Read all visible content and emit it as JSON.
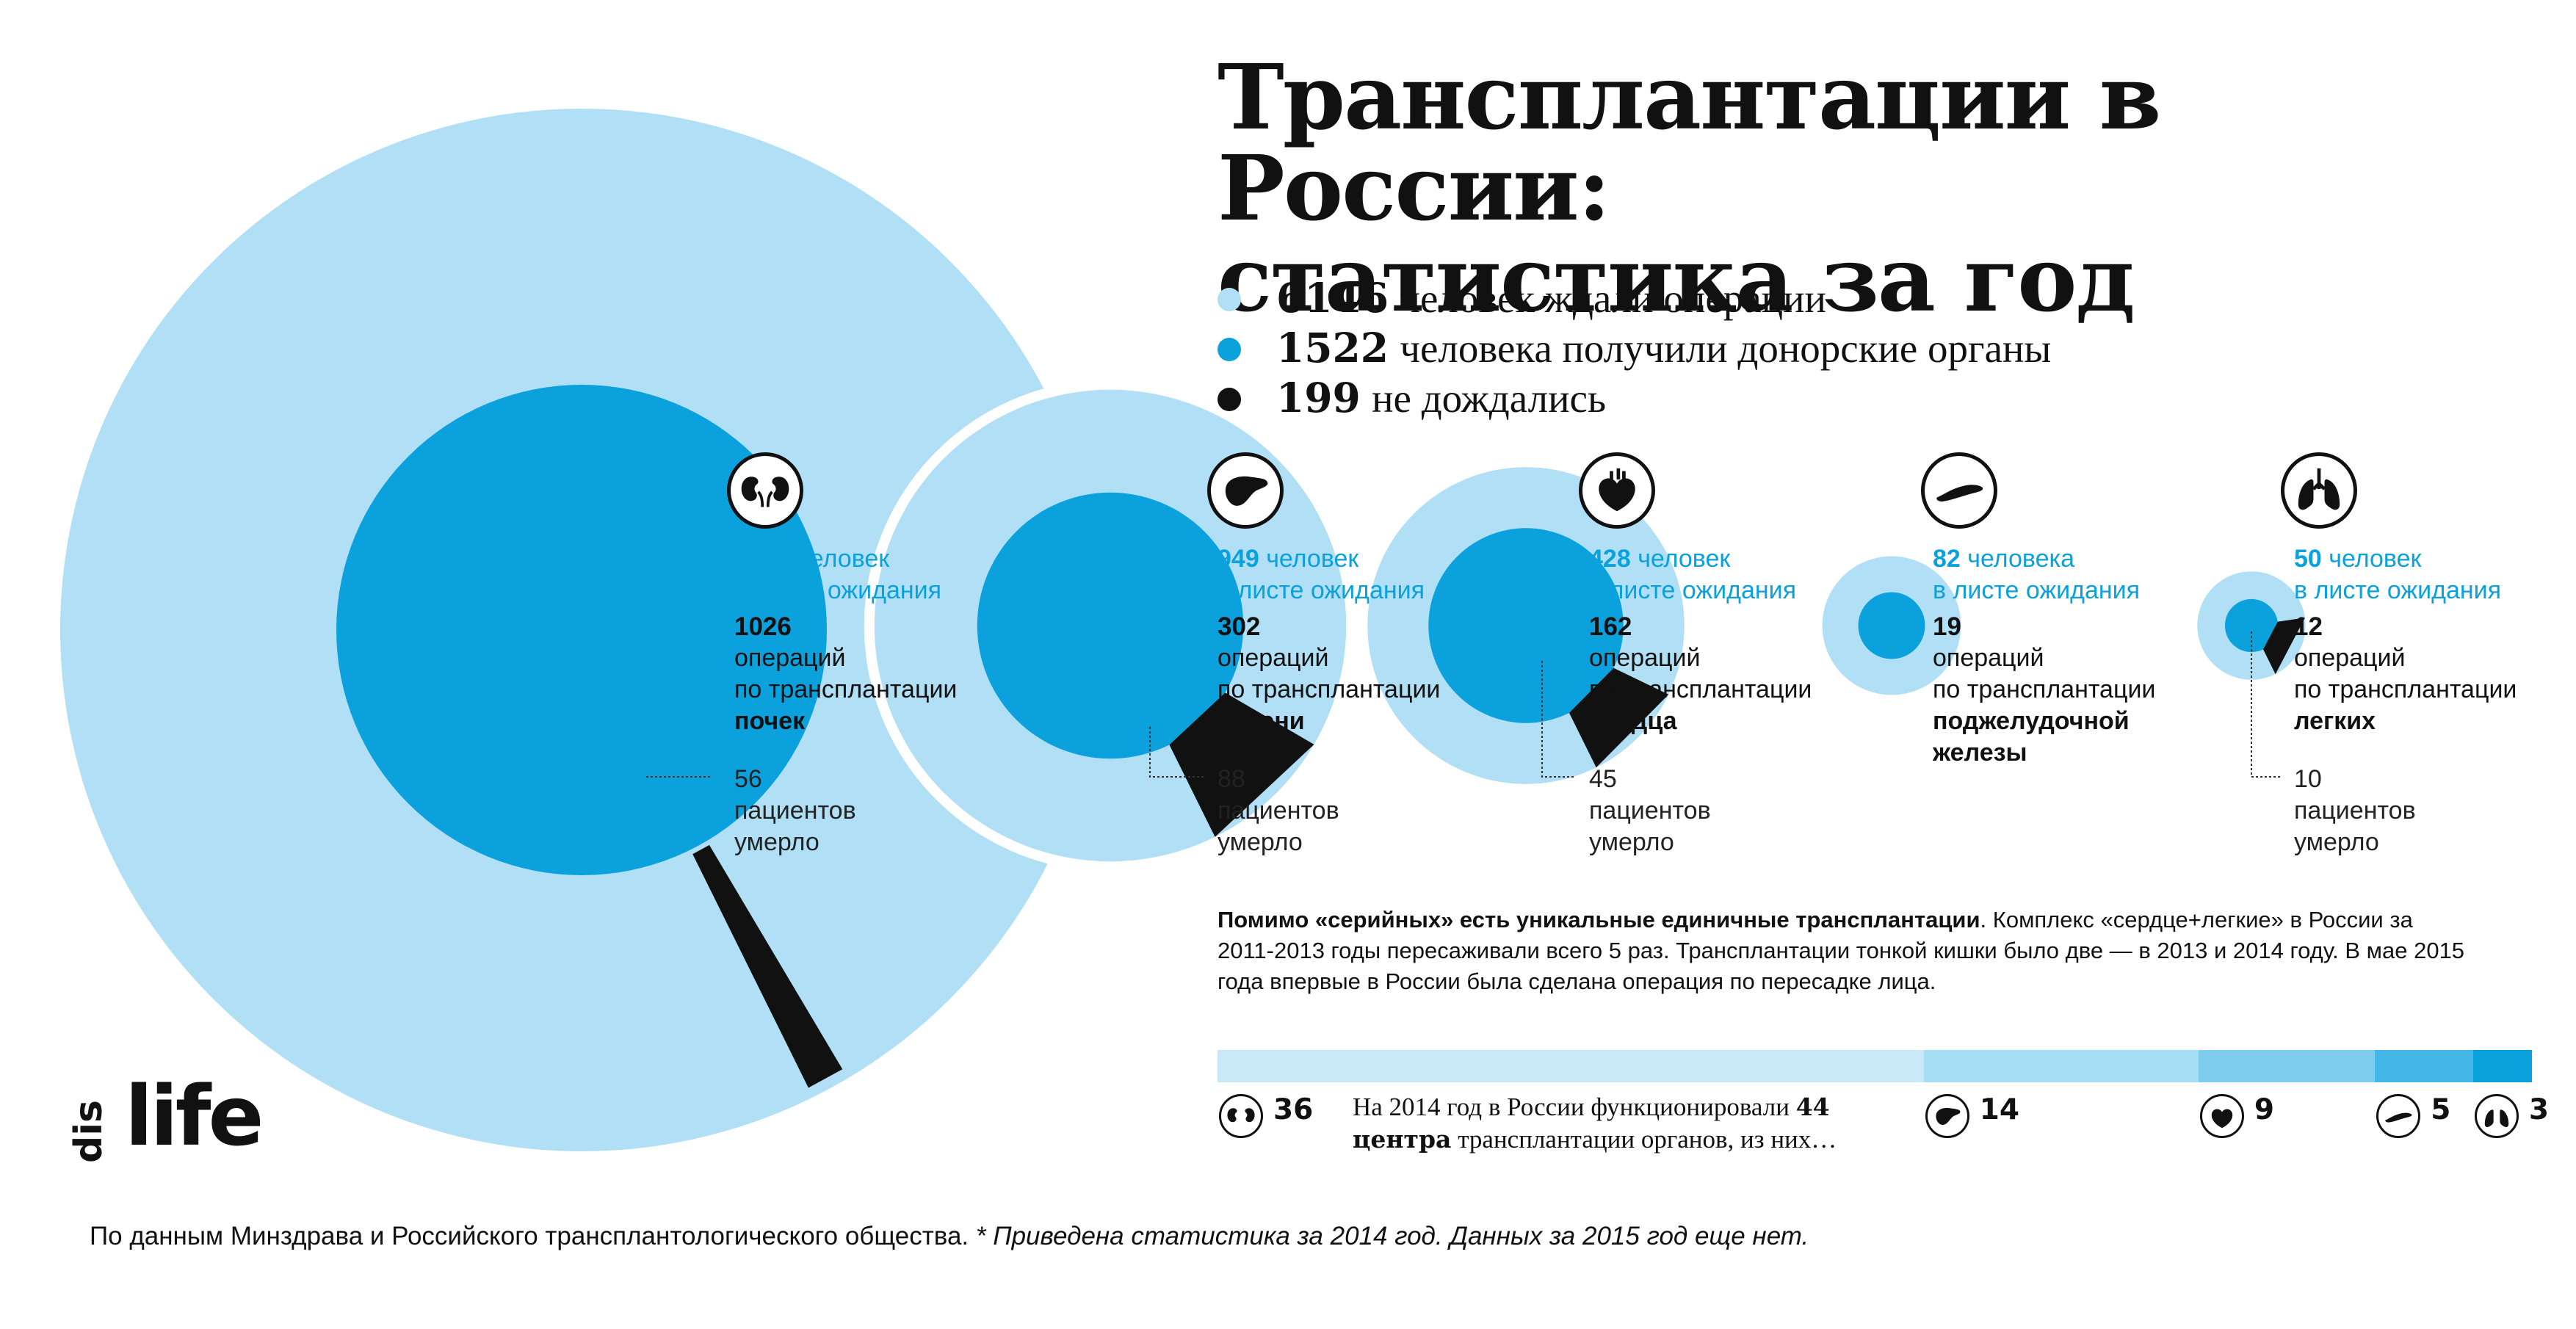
{
  "header": {
    "title_line1": "Трансплантации в России:",
    "title_line2": "статистика за год"
  },
  "legend": {
    "items": [
      {
        "num": "6146",
        "text": "человек ждали операции",
        "color": "#b1dff5"
      },
      {
        "num": "1522",
        "text": "человека получили донорские органы",
        "color": "#0aa1dc"
      },
      {
        "num": "199",
        "text": "не дождались",
        "color": "#111111"
      }
    ]
  },
  "colors": {
    "waiting": "#b1dff5",
    "operated": "#0aa1dc",
    "died": "#111111",
    "accent_text": "#0aa1dc"
  },
  "organs": [
    {
      "icon": "kidneys-icon",
      "waiting_num": "4636",
      "waiting_unit": "человек",
      "waiting_text": "в листе ожидания",
      "ops_num": "1026",
      "ops_line1": "операций",
      "ops_line2": "по трансплантации",
      "organ_line1": "почек",
      "organ_line2": "",
      "deaths_num": "56",
      "deaths_line1": "пациентов",
      "deaths_line2": "умерло"
    },
    {
      "icon": "liver-icon",
      "waiting_num": "949",
      "waiting_unit": "человек",
      "waiting_text": "в листе ожидания",
      "ops_num": "302",
      "ops_line1": "операций",
      "ops_line2": "по трансплантации",
      "organ_line1": "печени",
      "organ_line2": "",
      "deaths_num": "88",
      "deaths_line1": "пациентов",
      "deaths_line2": "умерло"
    },
    {
      "icon": "heart-icon",
      "waiting_num": "428",
      "waiting_unit": "человек",
      "waiting_text": "в листе ожидания",
      "ops_num": "162",
      "ops_line1": "операций",
      "ops_line2": "по трансплантации",
      "organ_line1": "сердца",
      "organ_line2": "",
      "deaths_num": "45",
      "deaths_line1": "пациентов",
      "deaths_line2": "умерло"
    },
    {
      "icon": "pancreas-icon",
      "waiting_num": "82",
      "waiting_unit": "человека",
      "waiting_text": "в листе ожидания",
      "ops_num": "19",
      "ops_line1": "операций",
      "ops_line2": "по трансплантации",
      "organ_line1": "поджелудочной",
      "organ_line2": "железы",
      "deaths_num": "",
      "deaths_line1": "",
      "deaths_line2": ""
    },
    {
      "icon": "lungs-icon",
      "waiting_num": "50",
      "waiting_unit": "человек",
      "waiting_text": "в листе ожидания",
      "ops_num": "12",
      "ops_line1": "операций",
      "ops_line2": "по трансплантации",
      "organ_line1": "легких",
      "organ_line2": "",
      "deaths_num": "10",
      "deaths_line1": "пациентов",
      "deaths_line2": "умерло"
    }
  ],
  "note": {
    "bold": "Помимо «серийных» есть уникальные единичные трансплантации",
    "rest": ". Комплекс «сердце+легкие» в России за 2011-2013 годы пересаживали всего 5 раз. Трансплантации тонкой кишки было две — в 2013 и 2014 году. В мае 2015 года впервые в России была сделана операция по пересадке лица."
  },
  "centers": {
    "text_before": "На 2014 год в России функционировали",
    "bold": "44 центра",
    "text_after": "трансплантации органов, из них…",
    "items": [
      {
        "icon": "kidneys-icon",
        "count": "36",
        "color": "#c9e9f8"
      },
      {
        "icon": "liver-icon",
        "count": "14",
        "color": "#a6dcf4"
      },
      {
        "icon": "heart-icon",
        "count": "9",
        "color": "#7fcdee"
      },
      {
        "icon": "pancreas-icon",
        "count": "5",
        "color": "#43b7e6"
      },
      {
        "icon": "lungs-icon",
        "count": "3",
        "color": "#0aa1dc"
      }
    ]
  },
  "logo": {
    "small": "dis",
    "big": "life"
  },
  "source": {
    "text": "По данным Минздрава и Российского трансплантологического общества.",
    "italic": "* Приведена статистика за 2014 год. Данных за 2015 год еще нет."
  },
  "chart_data": {
    "type": "bubble",
    "categories": [
      "почек",
      "печени",
      "сердца",
      "поджелудочной железы",
      "легких"
    ],
    "series": [
      {
        "name": "человек ждали операции",
        "values": [
          4636,
          949,
          428,
          82,
          50
        ]
      },
      {
        "name": "человека получили донорские органы",
        "values": [
          1026,
          302,
          162,
          19,
          12
        ]
      },
      {
        "name": "не дождались",
        "values": [
          56,
          88,
          45,
          null,
          10
        ]
      }
    ],
    "totals": {
      "waiting": 6146,
      "operated": 1522,
      "died": 199
    },
    "centers": {
      "total": 44,
      "values": [
        36,
        14,
        9,
        5,
        3
      ]
    }
  }
}
